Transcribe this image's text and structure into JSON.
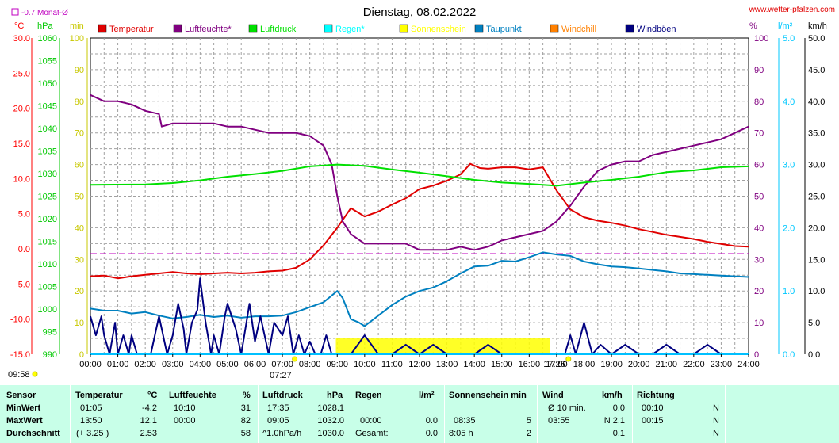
{
  "header": {
    "title": "Dienstag, 08.02.2022",
    "site": "www.wetter-pfalzen.com",
    "monthly_avg": "-0.7 Monat-Ø"
  },
  "chart_data": {
    "type": "line",
    "title": "Dienstag, 08.02.2022",
    "x_ticks": [
      "00:00",
      "01:00",
      "02:00",
      "03:00",
      "04:00",
      "05:00",
      "06:00",
      "07:00",
      "08:00",
      "09:00",
      "10:00",
      "11:00",
      "12:00",
      "13:00",
      "14:00",
      "15:00",
      "16:00",
      "17:00",
      "18:00",
      "19:00",
      "20:00",
      "21:00",
      "22:00",
      "23:00",
      "24:00"
    ],
    "axes": {
      "temp": {
        "unit": "°C",
        "ticks": [
          "30.0",
          "25.0",
          "20.0",
          "15.0",
          "10.0",
          "5.0",
          "0.0",
          "-5.0",
          "-10.0",
          "-15.0"
        ],
        "ylim": [
          -15,
          30
        ],
        "color": "#ff0000"
      },
      "pressure": {
        "unit": "hPa",
        "ticks": [
          "1060",
          "1055",
          "1050",
          "1045",
          "1040",
          "1035",
          "1030",
          "1025",
          "1020",
          "1015",
          "1010",
          "1005",
          "1000",
          "995",
          "990"
        ],
        "ylim": [
          990,
          1060
        ],
        "color": "#00c800"
      },
      "minutes": {
        "unit": "min",
        "ticks": [
          "100",
          "90",
          "80",
          "70",
          "60",
          "50",
          "40",
          "30",
          "20",
          "10",
          "0"
        ],
        "ylim": [
          0,
          100
        ],
        "color": "#c8c800"
      },
      "humidity": {
        "unit": "%",
        "ticks": [
          "100",
          "90",
          "80",
          "70",
          "60",
          "50",
          "40",
          "30",
          "20",
          "10",
          "0"
        ],
        "ylim": [
          0,
          100
        ],
        "color": "#800080"
      },
      "rain": {
        "unit": "l/m²",
        "ticks": [
          "5.0",
          "4.0",
          "3.0",
          "2.0",
          "1.0",
          "0.0"
        ],
        "ylim": [
          0,
          5
        ],
        "color": "#00c0ff"
      },
      "wind": {
        "unit": "km/h",
        "ticks": [
          "50.0",
          "45.0",
          "40.0",
          "35.0",
          "30.0",
          "25.0",
          "20.0",
          "15.0",
          "10.0",
          "5.0",
          "0.0"
        ],
        "ylim": [
          0,
          50
        ],
        "color": "#000000"
      }
    },
    "legend": [
      {
        "name": "Temperatur",
        "color": "#e00000"
      },
      {
        "name": "Luftfeuchte*",
        "color": "#800080"
      },
      {
        "name": "Luftdruck",
        "color": "#00e000"
      },
      {
        "name": "Regen*",
        "color": "#00ffff"
      },
      {
        "name": "Sonnenschein",
        "color": "#ffff00"
      },
      {
        "name": "Taupunkt",
        "color": "#0080c0"
      },
      {
        "name": "Windchill",
        "color": "#ff8000"
      },
      {
        "name": "Windböen",
        "color": "#000080"
      }
    ],
    "series": [
      {
        "name": "Temperatur",
        "axis": "temp",
        "color": "#e00000",
        "x": [
          0,
          0.5,
          1,
          1.5,
          2,
          2.5,
          3,
          3.5,
          4,
          4.5,
          5,
          5.5,
          6,
          6.5,
          7,
          7.5,
          8,
          8.5,
          9,
          9.5,
          10,
          10.5,
          11,
          11.5,
          12,
          12.5,
          13,
          13.5,
          13.85,
          14.2,
          14.5,
          15,
          15.5,
          16,
          16.5,
          17,
          17.5,
          18,
          18.5,
          19,
          19.5,
          20,
          20.5,
          21,
          21.5,
          22,
          22.5,
          23,
          23.5,
          24
        ],
        "y": [
          -3.9,
          -3.8,
          -4.2,
          -3.9,
          -3.7,
          -3.5,
          -3.3,
          -3.5,
          -3.6,
          -3.5,
          -3.4,
          -3.5,
          -3.4,
          -3.2,
          -3.1,
          -2.7,
          -1.5,
          0.5,
          3.0,
          5.8,
          4.6,
          5.3,
          6.3,
          7.2,
          8.5,
          9.0,
          9.7,
          10.6,
          12.1,
          11.5,
          11.4,
          11.6,
          11.6,
          11.3,
          11.6,
          8.3,
          5.6,
          4.5,
          4.0,
          3.7,
          3.3,
          2.8,
          2.4,
          2.0,
          1.7,
          1.4,
          1.0,
          0.7,
          0.4,
          0.3
        ]
      },
      {
        "name": "Luftfeuchte*",
        "axis": "humidity",
        "color": "#800080",
        "x": [
          0,
          0.5,
          1,
          1.5,
          2,
          2.5,
          2.6,
          3,
          3.5,
          4,
          4.5,
          5,
          5.5,
          6,
          6.5,
          7,
          7.5,
          8,
          8.5,
          8.8,
          9,
          9.2,
          9.5,
          10,
          10.5,
          11,
          11.5,
          12,
          12.5,
          13,
          13.5,
          14,
          14.5,
          15,
          15.5,
          16,
          16.5,
          17,
          17.5,
          18,
          18.5,
          19,
          19.5,
          20,
          20.5,
          21,
          21.5,
          22,
          22.5,
          23,
          23.5,
          24
        ],
        "y": [
          82,
          80,
          80,
          79,
          77,
          76,
          72,
          73,
          73,
          73,
          73,
          72,
          72,
          71,
          70,
          70,
          70,
          69,
          66,
          60,
          50,
          42,
          38,
          35,
          35,
          35,
          35,
          33,
          33,
          33,
          34,
          33,
          34,
          36,
          37,
          38,
          39,
          42,
          47,
          53,
          58,
          60,
          61,
          61,
          63,
          64,
          65,
          66,
          67,
          68,
          70,
          72
        ]
      },
      {
        "name": "Luftdruck",
        "axis": "pressure",
        "color": "#00e000",
        "x": [
          0,
          2,
          3,
          4,
          5,
          6,
          7,
          8,
          9,
          10,
          11,
          12,
          13,
          14,
          15,
          16,
          17,
          18,
          19,
          20,
          21,
          22,
          23,
          24
        ],
        "y": [
          1027.5,
          1027.6,
          1027.9,
          1028.5,
          1029.3,
          1029.9,
          1030.6,
          1031.6,
          1032.0,
          1031.7,
          1030.9,
          1030.2,
          1029.4,
          1028.6,
          1028.0,
          1027.7,
          1027.3,
          1028.0,
          1028.6,
          1029.3,
          1030.3,
          1030.7,
          1031.4,
          1031.6
        ]
      },
      {
        "name": "Taupunkt",
        "axis": "temp",
        "color": "#0080c0",
        "x": [
          0,
          0.5,
          1,
          1.5,
          2,
          2.5,
          3,
          3.5,
          4,
          4.5,
          5,
          5.5,
          6,
          6.5,
          7,
          7.5,
          8,
          8.5,
          9,
          9.2,
          9.5,
          9.8,
          10,
          10.5,
          11,
          11.5,
          12,
          12.5,
          13,
          13.5,
          14,
          14.5,
          15,
          15.5,
          16,
          16.5,
          17,
          17.5,
          18,
          18.5,
          19,
          19.5,
          20,
          20.5,
          21,
          21.5,
          22,
          22.5,
          23,
          23.5,
          24
        ],
        "y": [
          -8.5,
          -8.8,
          -8.8,
          -9.2,
          -9.0,
          -9.5,
          -9.9,
          -9.7,
          -9.4,
          -9.7,
          -9.5,
          -9.8,
          -9.6,
          -9.6,
          -9.5,
          -9.0,
          -8.3,
          -7.6,
          -6.0,
          -7.0,
          -10.0,
          -10.5,
          -11.0,
          -9.5,
          -8.0,
          -6.8,
          -6.0,
          -5.5,
          -4.6,
          -3.5,
          -2.5,
          -2.4,
          -1.7,
          -1.8,
          -1.2,
          -0.5,
          -0.8,
          -1.0,
          -1.8,
          -2.2,
          -2.5,
          -2.6,
          -2.8,
          -3.0,
          -3.2,
          -3.5,
          -3.6,
          -3.7,
          -3.8,
          -3.9,
          -4.0
        ]
      },
      {
        "name": "Windböen",
        "axis": "wind",
        "color": "#000080",
        "x": [
          0,
          0.2,
          0.4,
          0.5,
          0.7,
          0.9,
          1.0,
          1.2,
          1.4,
          1.5,
          1.7,
          2.0,
          2.2,
          2.5,
          2.8,
          3.0,
          3.2,
          3.4,
          3.5,
          3.7,
          3.9,
          4.0,
          4.2,
          4.4,
          4.5,
          4.7,
          4.9,
          5.0,
          5.3,
          5.5,
          5.8,
          6.0,
          6.2,
          6.5,
          6.7,
          7.0,
          7.2,
          7.4,
          7.6,
          7.8,
          8.0,
          8.2,
          8.4,
          8.6,
          8.8,
          9.0,
          9.5,
          10.0,
          10.5,
          11.0,
          11.5,
          12.0,
          12.5,
          13,
          13.5,
          14.0,
          14.5,
          15,
          17.3,
          17.5,
          17.7,
          18.0,
          18.3,
          18.6,
          19,
          19.5,
          20,
          20.5,
          21,
          21.5,
          22,
          22.5,
          23,
          23.5,
          24
        ],
        "y": [
          6,
          3,
          6,
          3,
          0,
          5,
          0,
          3,
          0,
          3,
          0,
          0,
          0,
          6,
          0,
          3,
          8,
          4,
          0,
          5,
          7,
          12,
          5,
          0,
          3,
          0,
          6,
          8,
          4,
          0,
          8,
          2,
          6,
          0,
          5,
          3,
          6,
          0,
          3,
          0,
          2,
          0,
          0,
          3,
          0,
          0,
          0,
          3,
          0,
          0,
          1.5,
          0,
          1.5,
          0,
          0,
          0,
          1.5,
          0,
          0,
          3,
          0,
          5,
          0,
          1.5,
          0,
          1.5,
          0,
          0,
          1.5,
          0,
          0,
          1.5,
          0,
          0,
          0
        ]
      }
    ],
    "sunshine": {
      "axis": "minutes",
      "start_hour": 8.95,
      "end_hour": 16.75,
      "value": 5
    },
    "reference_line": {
      "name": "-0.7 Monat-Ø",
      "axis": "temp",
      "value": -0.7,
      "color": "#c000c0"
    },
    "sunrise": {
      "label": "07:27",
      "hour": 7.45
    },
    "sunset": {
      "label": "17:26",
      "hour": 17.43
    },
    "day_length": "09:58"
  },
  "stats": {
    "headers": {
      "sensor": "Sensor",
      "temp": "Temperatur",
      "temp_unit": "°C",
      "hum": "Luftfeuchte",
      "hum_unit": "%",
      "press": "Luftdruck",
      "press_unit": "hPa",
      "rain": "Regen",
      "rain_unit": "l/m²",
      "sun": "Sonnenschein min",
      "wind": "Wind",
      "wind_unit": "km/h",
      "dir": "Richtung"
    },
    "rows": [
      {
        "label": "MinWert",
        "temp_time": "01:05",
        "temp_val": "-4.2",
        "hum_time": "10:10",
        "hum_val": "31",
        "press_time": "17:35",
        "press_val": "1028.1",
        "rain_time": "",
        "rain_val": "",
        "sun_time": "",
        "sun_val": "",
        "wind_time": "Ø 10 min.",
        "wind_val": "0.0",
        "dir_time": "00:10",
        "dir_val": "N"
      },
      {
        "label": "MaxWert",
        "temp_time": "13:50",
        "temp_val": "12.1",
        "hum_time": "00:00",
        "hum_val": "82",
        "press_time": "09:05",
        "press_val": "1032.0",
        "rain_time": "00:00",
        "rain_val": "0.0",
        "sun_time": "08:35",
        "sun_val": "5",
        "wind_time": "03:55",
        "wind_val": "N 2.1",
        "dir_time": "00:15",
        "dir_val": "N"
      },
      {
        "label": "Durchschnitt",
        "temp_time": "(+ 3.25 )",
        "temp_val": "2.53",
        "hum_time": "",
        "hum_val": "58",
        "press_time": "^1.0hPa/h",
        "press_val": "1030.0",
        "rain_time": "Gesamt:",
        "rain_val": "0.0",
        "sun_time": "8:05 h",
        "sun_val": "2",
        "wind_time": "",
        "wind_val": "0.1",
        "dir_time": "",
        "dir_val": "N"
      }
    ]
  }
}
